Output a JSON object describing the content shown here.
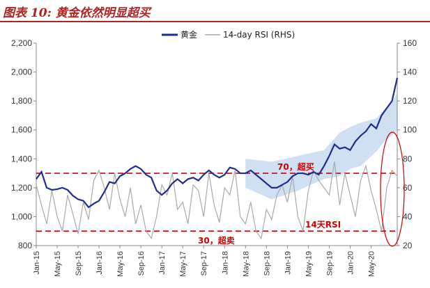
{
  "figure_title": "图表 10:  黄金依然明显超买",
  "colors": {
    "gold": "#1f2d8c",
    "rsi": "#a9a9a9",
    "threshold": "#d00000",
    "band": "#cfe0f3",
    "title": "#b22222"
  },
  "chart_data": {
    "type": "line",
    "title": "图表 10:  黄金依然明显超买",
    "legend": {
      "position": "top-center"
    },
    "grid": false,
    "y_left": {
      "ticks": [
        "800",
        "1,000",
        "1,200",
        "1,400",
        "1,600",
        "1,800",
        "2,000",
        "2,200"
      ],
      "range": [
        800,
        2200
      ]
    },
    "y_right": {
      "ticks": [
        "20",
        "40",
        "60",
        "80",
        "100",
        "120",
        "140",
        "160"
      ],
      "range": [
        20,
        160
      ]
    },
    "x_ticks": [
      "Jan-15",
      "May-15",
      "Sep-15",
      "Jan-16",
      "May-16",
      "Sep-16",
      "Jan-17",
      "May-17",
      "Sep-17",
      "Jan-18",
      "May-18",
      "Sep-18",
      "Jan-19",
      "May-19",
      "Sep-19",
      "Jan-20",
      "May-20"
    ],
    "series": [
      {
        "name": "黄金",
        "axis": "left",
        "x": [
          0,
          1,
          2,
          3,
          4,
          5,
          6,
          7,
          8,
          9,
          10,
          11,
          12,
          13,
          14,
          15,
          16,
          17,
          18,
          19,
          20,
          21,
          22,
          23,
          24,
          25,
          26,
          27,
          28,
          29,
          30,
          31,
          32,
          33,
          34,
          35,
          36,
          37,
          38,
          39,
          40,
          41,
          42,
          43,
          44,
          45,
          46,
          47,
          48,
          49,
          50,
          51,
          52,
          53,
          54,
          55,
          56,
          57,
          58,
          59,
          60,
          61,
          62,
          63,
          64,
          65,
          66,
          67,
          68,
          69
        ],
        "values": [
          1260,
          1310,
          1200,
          1185,
          1190,
          1200,
          1185,
          1145,
          1120,
          1110,
          1065,
          1090,
          1110,
          1170,
          1240,
          1230,
          1280,
          1300,
          1330,
          1350,
          1330,
          1290,
          1270,
          1180,
          1150,
          1180,
          1230,
          1260,
          1230,
          1260,
          1270,
          1250,
          1290,
          1320,
          1290,
          1270,
          1290,
          1340,
          1330,
          1300,
          1300,
          1320,
          1290,
          1260,
          1230,
          1200,
          1200,
          1220,
          1240,
          1280,
          1300,
          1300,
          1290,
          1310,
          1290,
          1350,
          1420,
          1500,
          1470,
          1480,
          1460,
          1520,
          1560,
          1590,
          1640,
          1610,
          1700,
          1750,
          1800,
          1960
        ]
      },
      {
        "name": "14-day RSI (RHS)",
        "axis": "right",
        "x": [
          0,
          1,
          2,
          3,
          4,
          5,
          6,
          7,
          8,
          9,
          10,
          11,
          12,
          13,
          14,
          15,
          16,
          17,
          18,
          19,
          20,
          21,
          22,
          23,
          24,
          25,
          26,
          27,
          28,
          29,
          30,
          31,
          32,
          33,
          34,
          35,
          36,
          37,
          38,
          39,
          40,
          41,
          42,
          43,
          44,
          45,
          46,
          47,
          48,
          49,
          50,
          51,
          52,
          53,
          54,
          55,
          56,
          57,
          58,
          59,
          60,
          61,
          62,
          63,
          64,
          65,
          66,
          67,
          68,
          69
        ],
        "values": [
          62,
          48,
          35,
          58,
          40,
          30,
          55,
          42,
          28,
          50,
          38,
          65,
          72,
          60,
          45,
          70,
          52,
          40,
          60,
          35,
          48,
          30,
          25,
          40,
          62,
          55,
          70,
          45,
          50,
          35,
          62,
          58,
          40,
          70,
          48,
          36,
          60,
          55,
          72,
          40,
          35,
          50,
          30,
          25,
          45,
          38,
          55,
          62,
          50,
          68,
          40,
          30,
          58,
          72,
          65,
          60,
          55,
          78,
          48,
          70,
          55,
          40,
          65,
          75,
          58,
          45,
          30,
          60,
          72,
          68
        ]
      }
    ],
    "band_series": {
      "axis": "left",
      "x": [
        40,
        45,
        50,
        55,
        58,
        60,
        62,
        65,
        67,
        68,
        69
      ],
      "lower": [
        1200,
        1120,
        1180,
        1260,
        1280,
        1330,
        1350,
        1450,
        1540,
        1560,
        1600
      ],
      "upper": [
        1400,
        1380,
        1420,
        1460,
        1580,
        1620,
        1650,
        1680,
        1760,
        1800,
        1850
      ]
    },
    "reference_lines": [
      {
        "axis": "right",
        "value": 70,
        "label": "70，超买"
      },
      {
        "axis": "right",
        "value": 30,
        "label": "30，超卖"
      }
    ],
    "annotations": [
      {
        "text": "14天RSI",
        "axis": "right",
        "value": 30
      }
    ]
  }
}
